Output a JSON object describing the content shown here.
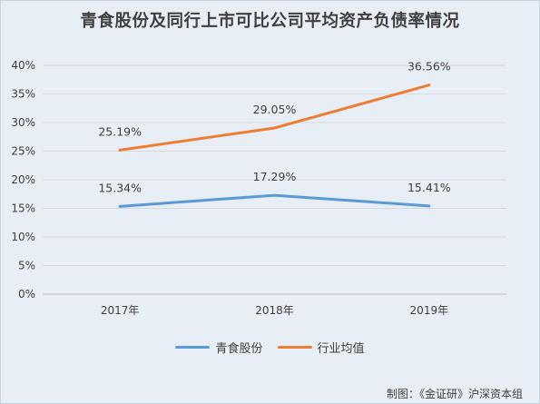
{
  "colors": {
    "series_qingshi": "#5b9bd5",
    "series_industry": "#ed7d31",
    "grid": "#d9d9d9",
    "axis": "#bfbfbf",
    "text": "#404040",
    "background": "#e8eef6"
  },
  "credit": "制图：《金证研》沪深资本组",
  "chart_data": {
    "type": "line",
    "title": "青食股份及同行上市可比公司平均资产负债率情况",
    "categories": [
      "2017年",
      "2018年",
      "2019年"
    ],
    "series": [
      {
        "name": "青食股份",
        "values": [
          15.34,
          17.29,
          15.41
        ],
        "labels": [
          "15.34%",
          "17.29%",
          "15.41%"
        ]
      },
      {
        "name": "行业均值",
        "values": [
          25.19,
          29.05,
          36.56
        ],
        "labels": [
          "25.19%",
          "29.05%",
          "36.56%"
        ]
      }
    ],
    "ylim": [
      0,
      40
    ],
    "y_ticks": [
      "0%",
      "5%",
      "10%",
      "15%",
      "20%",
      "25%",
      "30%",
      "35%",
      "40%"
    ],
    "grid": true,
    "legend_position": "bottom"
  }
}
